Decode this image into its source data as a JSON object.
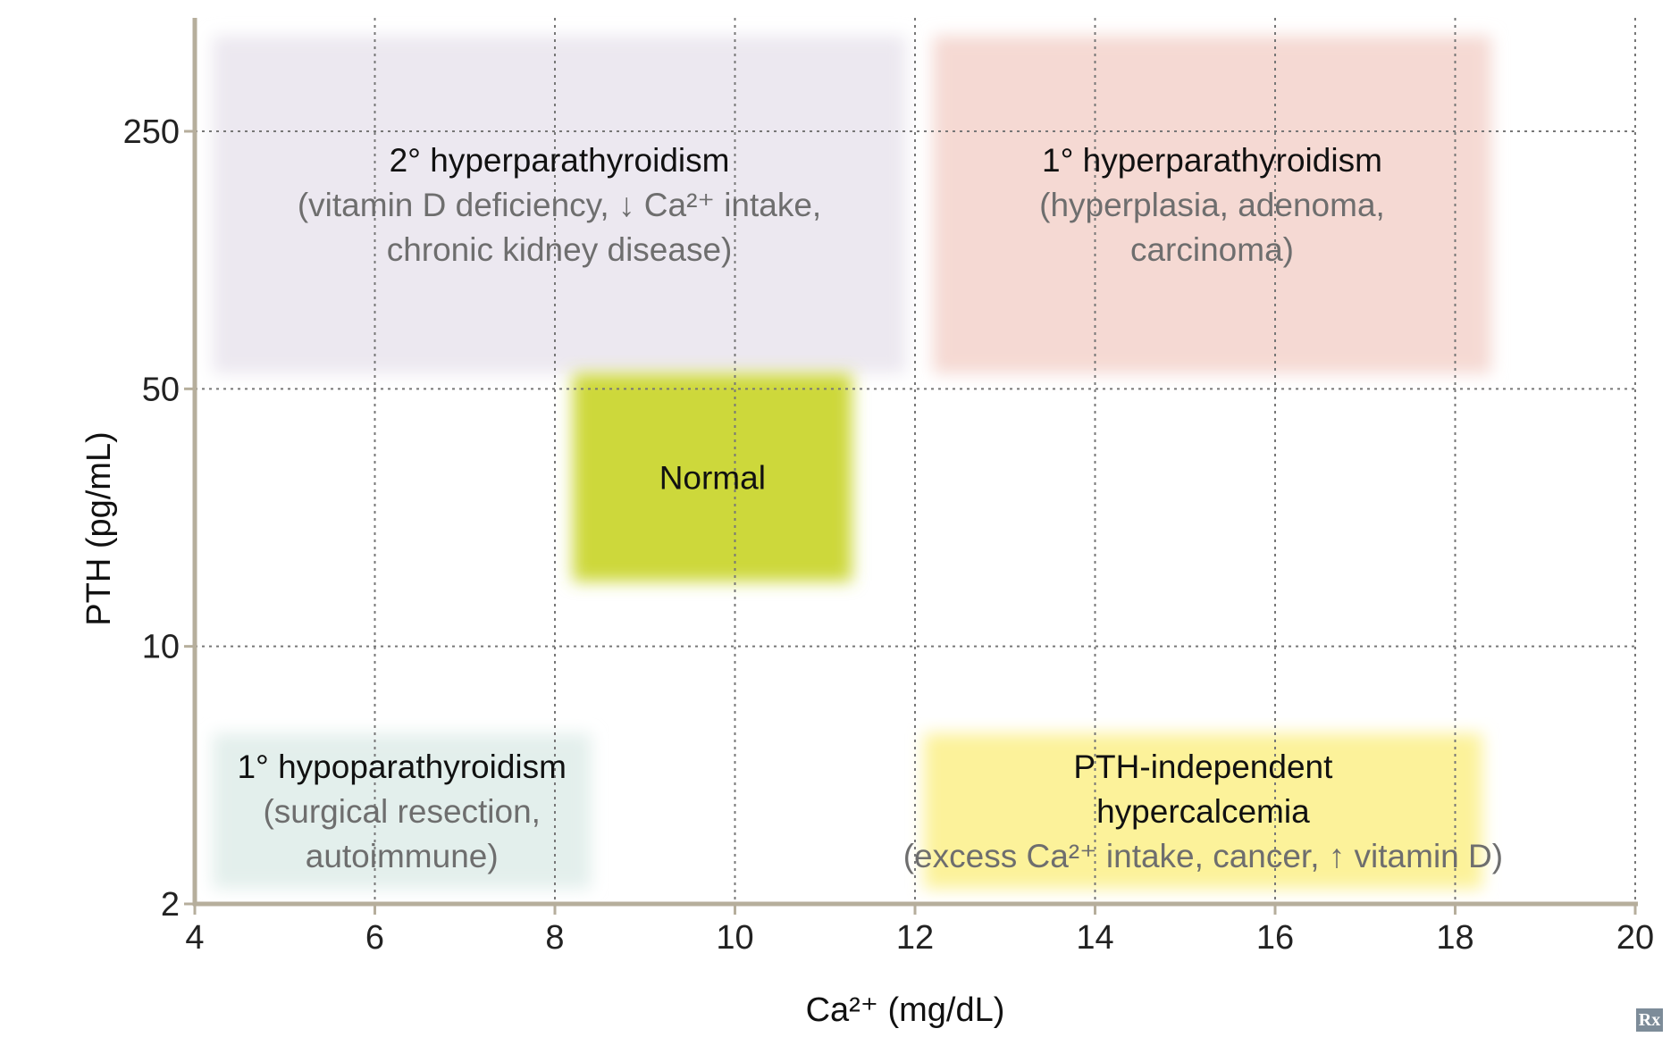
{
  "chart_data": {
    "type": "scatter",
    "xlabel": "Ca²⁺ (mg/dL)",
    "ylabel": "PTH (pg/mL)",
    "xlim": [
      4,
      20
    ],
    "ylim": [
      2,
      500
    ],
    "x_ticks": [
      4,
      6,
      8,
      10,
      12,
      14,
      16,
      18,
      20
    ],
    "y_ticks": [
      2,
      10,
      50,
      250
    ],
    "y_scale": "log",
    "grid": true,
    "regions": [
      {
        "title": "2° hyperparathyroidism",
        "subtitle": [
          "(vitamin D deficiency, ↓ Ca²⁺ intake,",
          "chronic kidney disease)"
        ],
        "x": [
          4.2,
          11.9
        ],
        "y": [
          55,
          500
        ],
        "color": "#ece8f0"
      },
      {
        "title": "1° hyperparathyroidism",
        "subtitle": [
          "(hyperplasia, adenoma,",
          "carcinoma)"
        ],
        "x": [
          12.2,
          18.4
        ],
        "y": [
          55,
          500
        ],
        "color": "#f5d9d3"
      },
      {
        "title": "Normal",
        "subtitle": [],
        "x": [
          8.2,
          11.3
        ],
        "y": [
          15,
          55
        ],
        "color": "#cdd83a"
      },
      {
        "title": "1° hypoparathyroidism",
        "subtitle": [
          "(surgical resection,",
          "autoimmune)"
        ],
        "x": [
          4.2,
          8.4
        ],
        "y": [
          2.2,
          5.8
        ],
        "color": "#e3efec"
      },
      {
        "title": "PTH-independent",
        "subtitle": [
          "hypercalcemia",
          "(excess Ca²⁺ intake, cancer, ↑ vitamin D)"
        ],
        "x": [
          12.1,
          18.3
        ],
        "y": [
          2.2,
          5.8
        ],
        "color": "#fcf29a"
      }
    ]
  },
  "colors": {
    "axis": "#b6ae9c",
    "grid": "#777777"
  },
  "logo_text": "Rx"
}
